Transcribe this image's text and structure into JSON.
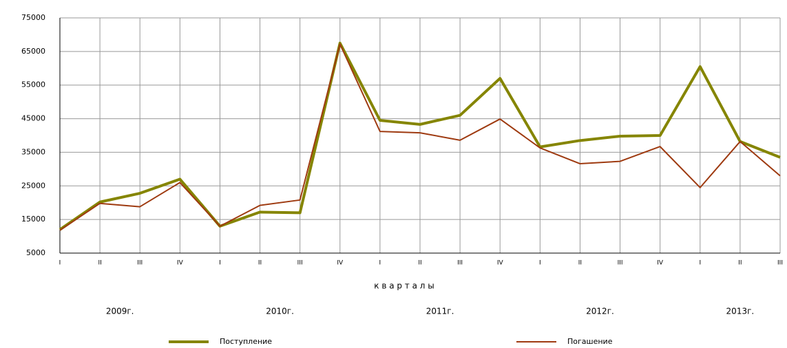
{
  "chart_data": {
    "type": "line",
    "x_label": "к в а р т а л ы",
    "categories": [
      "I",
      "II",
      "III",
      "IV",
      "I",
      "II",
      "III",
      "IV",
      "I",
      "II",
      "III",
      "IV",
      "I",
      "II",
      "III",
      "IV",
      "I",
      "II",
      "III"
    ],
    "year_labels": [
      "2009г.",
      "2010г.",
      "2011г.",
      "2012г.",
      "2013г."
    ],
    "series": [
      {
        "name": "Поступление",
        "color": "#858500",
        "width": 4,
        "values": [
          12000,
          20200,
          22800,
          27000,
          13000,
          17200,
          17000,
          67500,
          44500,
          43300,
          46000,
          57000,
          36600,
          38500,
          39800,
          40000,
          60500,
          38200,
          33500
        ]
      },
      {
        "name": "Погашение",
        "color": "#9e3a10",
        "width": 2,
        "values": [
          11800,
          19800,
          18800,
          26000,
          13000,
          19200,
          20800,
          67200,
          41200,
          40800,
          38600,
          44900,
          36300,
          31600,
          32300,
          36700,
          24500,
          38200,
          28000
        ]
      }
    ],
    "ylim": [
      5000,
      75000
    ],
    "yticks": [
      5000,
      15000,
      25000,
      35000,
      45000,
      55000,
      65000,
      75000
    ],
    "grid": true,
    "legend": "bottom"
  }
}
